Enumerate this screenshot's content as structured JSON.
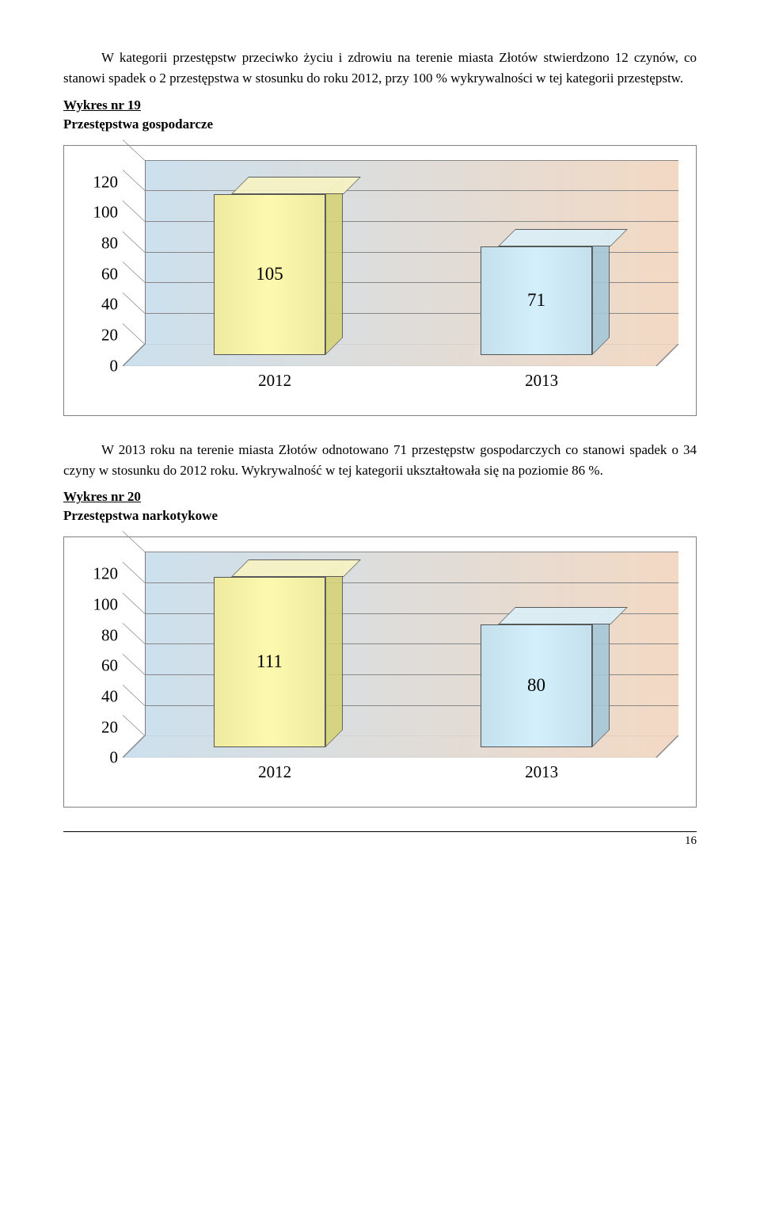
{
  "para1": "W kategorii przestępstw przeciwko życiu i zdrowiu na terenie miasta Złotów stwierdzono 12 czynów, co stanowi spadek o  2 przestępstwa w stosunku do roku 2012, przy 100 %  wykrywalności w tej kategorii przestępstw.",
  "heading1": "Wykres nr 19",
  "sub1": "Przestępstwa gospodarcze",
  "para2": "W 2013 roku na terenie miasta Złotów odnotowano 71 przestępstw gospodarczych co stanowi spadek o 34 czyny w  stosunku  do 2012 roku. Wykrywalność w tej kategorii ukształtowała się na poziomie 86 %.",
  "heading2": "Wykres nr 20",
  "sub2": "Przestępstwa narkotykowe",
  "page_number": "16",
  "chart1": {
    "type": "bar",
    "categories": [
      "2012",
      "2013"
    ],
    "values": [
      105,
      71
    ],
    "bar_colors_front": [
      "#eeea9f",
      "#c5e0ed"
    ],
    "bar_colors_top": [
      "#f5f3c4",
      "#dceef6"
    ],
    "bar_colors_side": [
      "#d6d27a",
      "#a6c8d9"
    ],
    "yticks": [
      0,
      20,
      40,
      60,
      80,
      100,
      120
    ],
    "ymax": 120,
    "gradient_left": "#cce0ee",
    "gradient_right": "#f3d9c4",
    "grid_color": "#888888",
    "label_fontsize": 21
  },
  "chart2": {
    "type": "bar",
    "categories": [
      "2012",
      "2013"
    ],
    "values": [
      111,
      80
    ],
    "bar_colors_front": [
      "#eeea9f",
      "#c5e0ed"
    ],
    "bar_colors_top": [
      "#f5f3c4",
      "#dceef6"
    ],
    "bar_colors_side": [
      "#d6d27a",
      "#a6c8d9"
    ],
    "yticks": [
      0,
      20,
      40,
      60,
      80,
      100,
      120
    ],
    "ymax": 120,
    "gradient_left": "#cce0ee",
    "gradient_right": "#f3d9c4",
    "grid_color": "#888888",
    "label_fontsize": 21
  }
}
